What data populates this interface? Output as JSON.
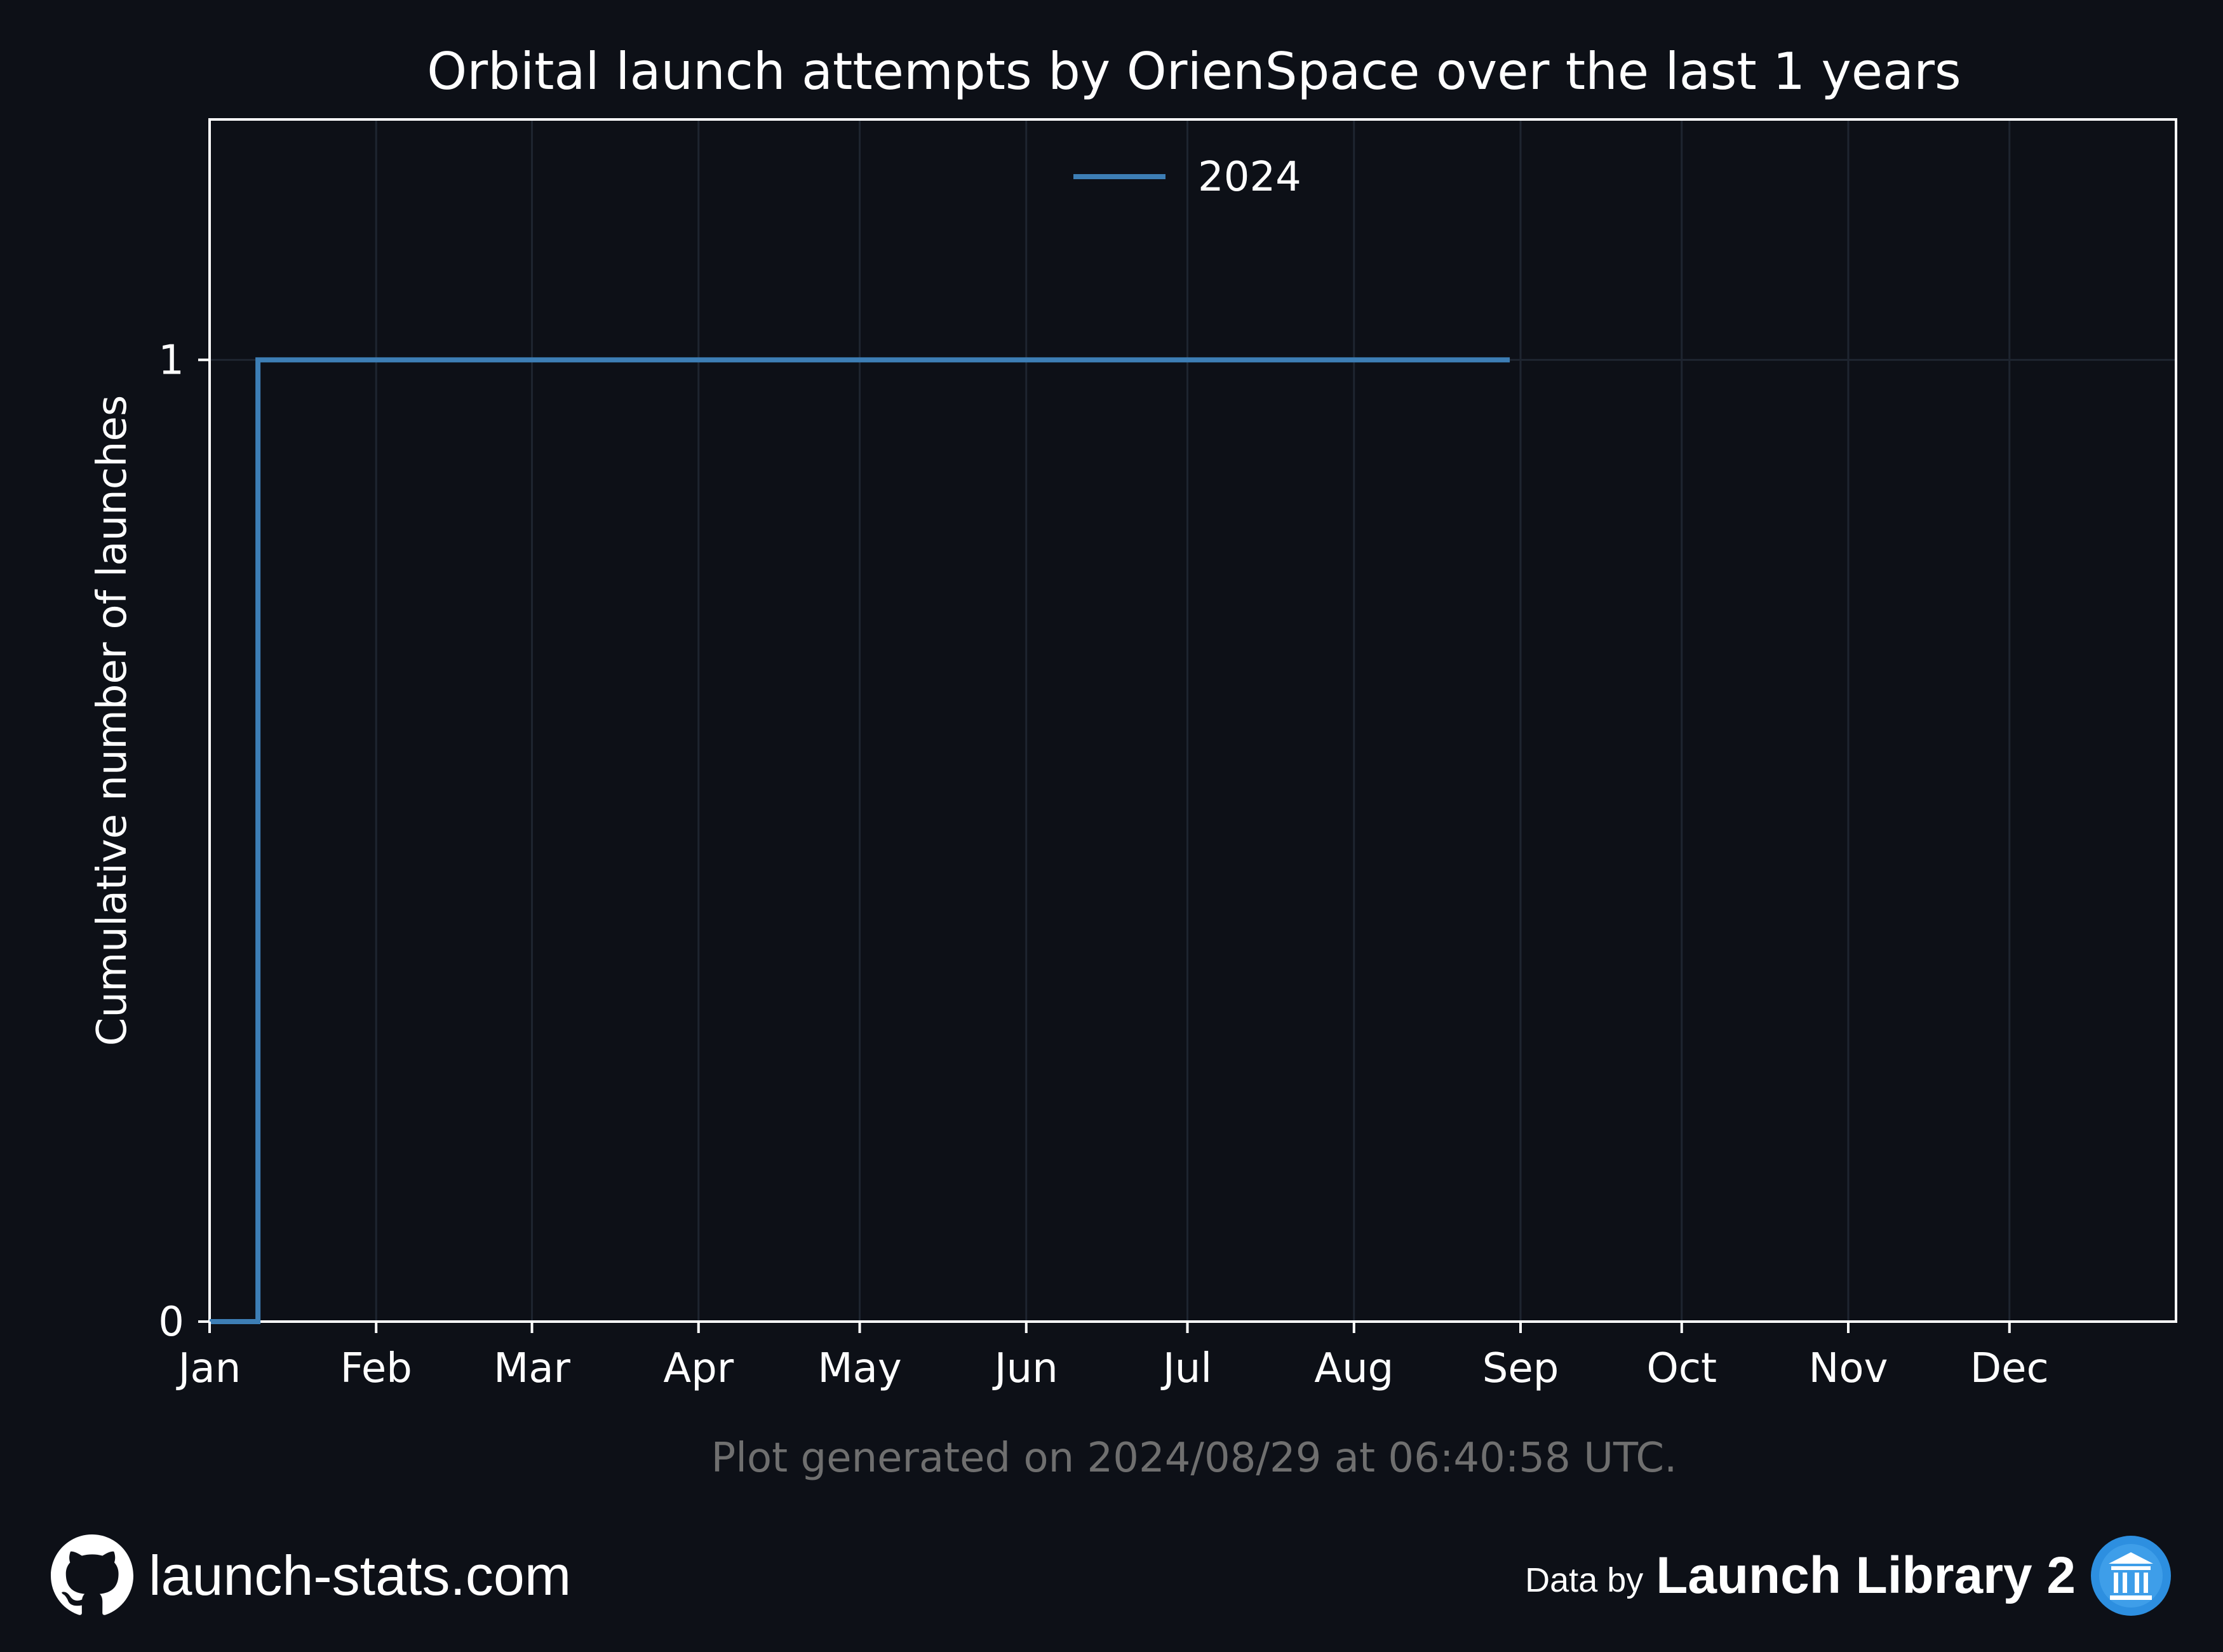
{
  "chart_data": {
    "type": "line",
    "title": "Orbital launch attempts by OrienSpace over the last 1 years",
    "xlabel": "",
    "ylabel": "Cumulative number of launches",
    "x_ticks": [
      "Jan",
      "Feb",
      "Mar",
      "Apr",
      "May",
      "Jun",
      "Jul",
      "Aug",
      "Sep",
      "Oct",
      "Nov",
      "Dec"
    ],
    "x_tick_days": [
      0,
      31,
      60,
      91,
      121,
      152,
      182,
      213,
      244,
      274,
      305,
      335
    ],
    "x_range_days": [
      0,
      366
    ],
    "y_ticks": [
      "0",
      "1"
    ],
    "ylim": [
      0,
      1.25
    ],
    "step": true,
    "grid": true,
    "legend_position": "upper center",
    "series": [
      {
        "name": "2024",
        "color": "#3d7eb5",
        "x_days": [
          0,
          9,
          242
        ],
        "y": [
          0,
          1,
          1
        ]
      }
    ]
  },
  "footnote": "Plot generated on 2024/08/29 at 06:40:58 UTC.",
  "footer": {
    "site": "launch-stats.com",
    "site_icon": "github-icon",
    "data_by": "Data by",
    "source": "Launch Library 2",
    "source_icon": "launch-library-icon"
  },
  "colors": {
    "background": "#0d1017",
    "axis": "#ffffff",
    "grid": "#1e2530",
    "line": "#3d7eb5",
    "footnote": "#6f6f6f"
  }
}
